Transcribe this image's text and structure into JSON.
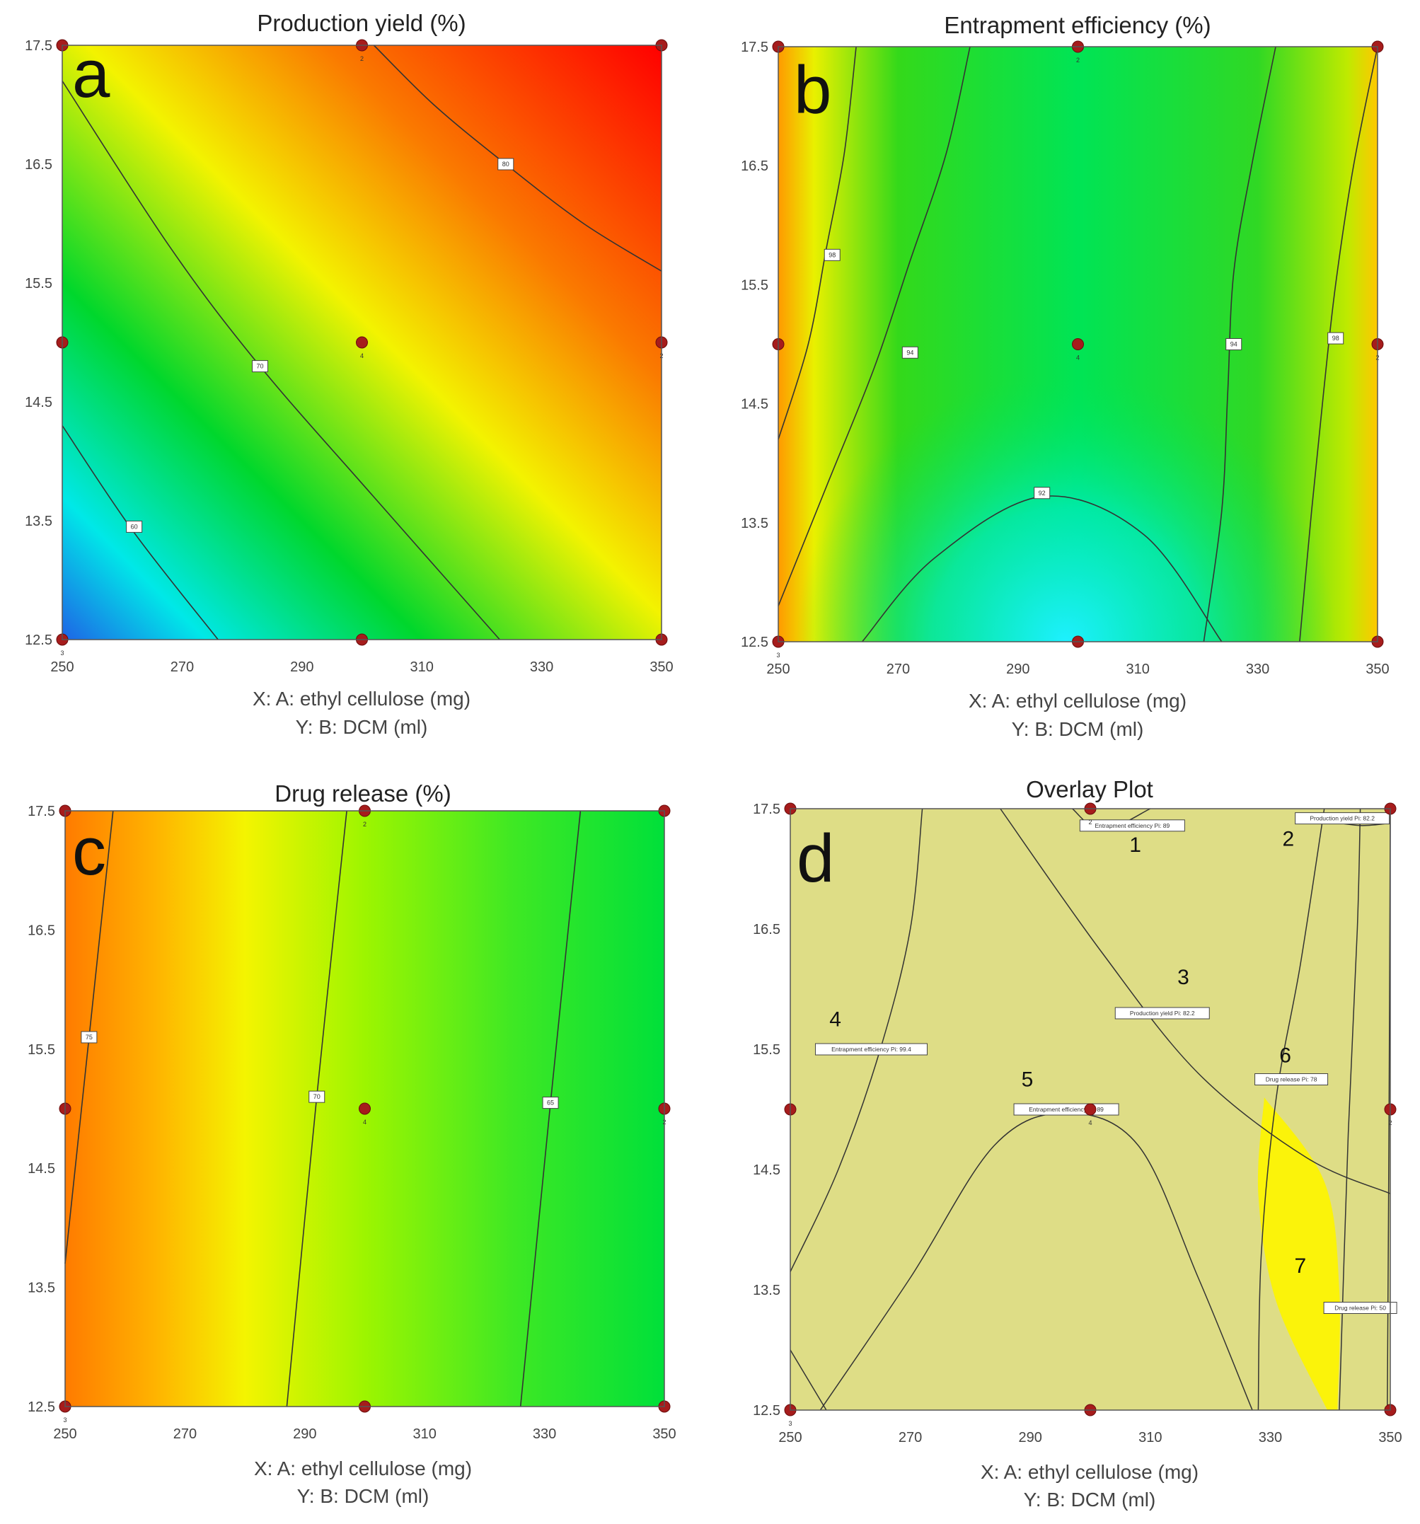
{
  "colors": {
    "design_point": "#a61c1c",
    "contour_line": "#333333",
    "overlay_base": "#dedd86",
    "overlay_region": "#fbf30a"
  },
  "design_points": [
    {
      "x": 250,
      "y": 12.5,
      "label": "3"
    },
    {
      "x": 250,
      "y": 15
    },
    {
      "x": 250,
      "y": 17.5
    },
    {
      "x": 300,
      "y": 12.5
    },
    {
      "x": 300,
      "y": 15,
      "label": "4"
    },
    {
      "x": 300,
      "y": 17.5,
      "label": "2"
    },
    {
      "x": 350,
      "y": 12.5
    },
    {
      "x": 350,
      "y": 15,
      "label": "2"
    },
    {
      "x": 350,
      "y": 17.5
    }
  ],
  "chart_data": [
    {
      "id": "a",
      "type": "heatmap",
      "panel_letter": "a",
      "title": "Production yield (%)",
      "xlabel": "X: A: ethyl cellulose (mg)",
      "ylabel": "Y: B: DCM (ml)",
      "xlim": [
        250,
        350
      ],
      "ylim": [
        12.5,
        17.5
      ],
      "xticks": [
        250,
        270,
        290,
        310,
        330,
        350
      ],
      "yticks": [
        12.5,
        13.5,
        14.5,
        15.5,
        16.5,
        17.5
      ],
      "colorscale": "blue-cyan-green-yellow-orange-red",
      "contours": [
        {
          "label": "60",
          "points": [
            [
              250,
              14.3
            ],
            [
              262,
              13.4
            ],
            [
              276,
              12.5
            ]
          ],
          "label_at": [
            262,
            13.45
          ]
        },
        {
          "label": "70",
          "points": [
            [
              250,
              17.2
            ],
            [
              268,
              15.8
            ],
            [
              283,
              14.8
            ],
            [
              302,
              13.7
            ],
            [
              323,
              12.5
            ]
          ],
          "label_at": [
            283,
            14.8
          ]
        },
        {
          "label": "80",
          "points": [
            [
              302,
              17.5
            ],
            [
              312,
              17.0
            ],
            [
              324,
              16.5
            ],
            [
              337,
              16.0
            ],
            [
              350,
              15.6
            ]
          ],
          "label_at": [
            324,
            16.5
          ]
        }
      ]
    },
    {
      "id": "b",
      "type": "heatmap",
      "panel_letter": "b",
      "title": "Entrapment efficiency (%)",
      "xlabel": "X: A: ethyl cellulose (mg)",
      "ylabel": "Y: B: DCM (ml)",
      "xlim": [
        250,
        350
      ],
      "ylim": [
        12.5,
        17.5
      ],
      "xticks": [
        250,
        270,
        290,
        310,
        330,
        350
      ],
      "yticks": [
        12.5,
        13.5,
        14.5,
        15.5,
        16.5,
        17.5
      ],
      "colorscale": "cyan-green-yellow-orange",
      "contours": [
        {
          "label": "98",
          "points": [
            [
              250,
              14.2
            ],
            [
              255,
              15.0
            ],
            [
              258,
              15.8
            ],
            [
              261,
              16.6
            ],
            [
              263,
              17.5
            ]
          ],
          "label_at": [
            259,
            15.75
          ]
        },
        {
          "label": "94",
          "points": [
            [
              250,
              12.8
            ],
            [
              258,
              13.8
            ],
            [
              266,
              14.8
            ],
            [
              272,
              15.7
            ],
            [
              278,
              16.6
            ],
            [
              282,
              17.5
            ]
          ],
          "label_at": [
            272,
            14.93
          ]
        },
        {
          "label": "94",
          "points": [
            [
              321,
              12.5
            ],
            [
              324,
              13.6
            ],
            [
              325,
              14.6
            ],
            [
              326,
              15.6
            ],
            [
              329,
              16.5
            ],
            [
              333,
              17.5
            ]
          ],
          "label_at": [
            326,
            15.0
          ]
        },
        {
          "label": "98",
          "points": [
            [
              337,
              12.5
            ],
            [
              339,
              13.6
            ],
            [
              341,
              14.6
            ],
            [
              343,
              15.5
            ],
            [
              346,
              16.5
            ],
            [
              350,
              17.5
            ]
          ],
          "label_at": [
            343,
            15.05
          ]
        },
        {
          "label": "92",
          "points": [
            [
              264,
              12.5
            ],
            [
              276,
              13.2
            ],
            [
              294,
              13.72
            ],
            [
              311,
              13.4
            ],
            [
              324,
              12.5
            ]
          ],
          "label_at": [
            294,
            13.75
          ]
        }
      ]
    },
    {
      "id": "c",
      "type": "heatmap",
      "panel_letter": "c",
      "title": "Drug release (%)",
      "xlabel": "X: A: ethyl cellulose (mg)",
      "ylabel": "Y: B: DCM (ml)",
      "xlim": [
        250,
        350
      ],
      "ylim": [
        12.5,
        17.5
      ],
      "xticks": [
        250,
        270,
        290,
        310,
        330,
        350
      ],
      "yticks": [
        12.5,
        13.5,
        14.5,
        15.5,
        16.5,
        17.5
      ],
      "colorscale": "orange-yellow-green",
      "contours": [
        {
          "label": "75",
          "points": [
            [
              250,
              13.7
            ],
            [
              254,
              15.6
            ],
            [
              258,
              17.5
            ]
          ],
          "label_at": [
            254,
            15.6
          ]
        },
        {
          "label": "70",
          "points": [
            [
              287,
              12.5
            ],
            [
              292,
              15.1
            ],
            [
              297,
              17.5
            ]
          ],
          "label_at": [
            292,
            15.1
          ]
        },
        {
          "label": "65",
          "points": [
            [
              326,
              12.5
            ],
            [
              331,
              15.05
            ],
            [
              336,
              17.5
            ]
          ],
          "label_at": [
            331,
            15.05
          ]
        }
      ]
    },
    {
      "id": "d",
      "type": "heatmap",
      "panel_letter": "d",
      "title": "Overlay Plot",
      "xlabel": "X: A: ethyl cellulose (mg)",
      "ylabel": "Y: B: DCM (ml)",
      "xlim": [
        250,
        350
      ],
      "ylim": [
        12.5,
        17.5
      ],
      "xticks": [
        250,
        270,
        290,
        310,
        330,
        350
      ],
      "yticks": [
        12.5,
        13.5,
        14.5,
        15.5,
        16.5,
        17.5
      ],
      "region_numbers": [
        {
          "n": "1",
          "x": 307.5,
          "y": 17.2
        },
        {
          "n": "2",
          "x": 333,
          "y": 17.25
        },
        {
          "n": "3",
          "x": 315.5,
          "y": 16.1
        },
        {
          "n": "4",
          "x": 257.5,
          "y": 15.75
        },
        {
          "n": "5",
          "x": 289.5,
          "y": 15.25
        },
        {
          "n": "6",
          "x": 332.5,
          "y": 15.45
        },
        {
          "n": "7",
          "x": 335,
          "y": 13.7
        }
      ],
      "contour_labels": [
        {
          "text": "Entrapment efficiency Pi: 89",
          "x": 307,
          "y": 17.36
        },
        {
          "text": "Production yield Pi: 82.2",
          "x": 342,
          "y": 17.42
        },
        {
          "text": "Production yield Pi: 82.2",
          "x": 312,
          "y": 15.8
        },
        {
          "text": "Entrapment efficiency Pi: 99.4",
          "x": 263.5,
          "y": 15.5
        },
        {
          "text": "Drug release Pi: 78",
          "x": 333.5,
          "y": 15.25
        },
        {
          "text": "Entrapment efficiency Pi: 89",
          "x": 296,
          "y": 15.0
        },
        {
          "text": "Drug release Pi: 50",
          "x": 345,
          "y": 13.35
        }
      ]
    }
  ]
}
